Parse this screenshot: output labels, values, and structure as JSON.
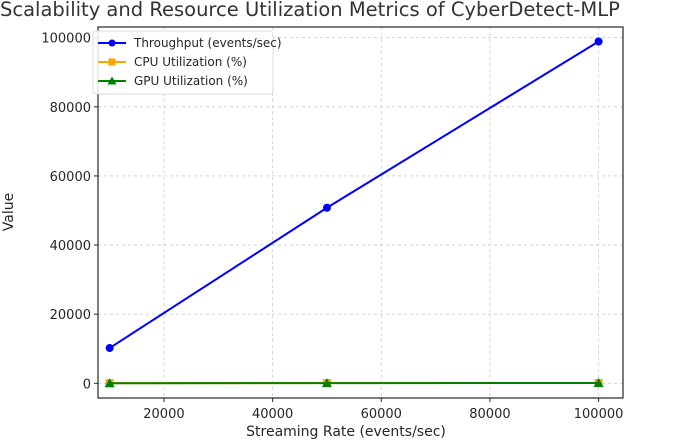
{
  "chart_data": {
    "type": "line",
    "title": "Scalability and Resource Utilization Metrics of CyberDetect-MLP",
    "xlabel": "Streaming Rate (events/sec)",
    "ylabel": "Value",
    "x": [
      10000,
      50000,
      100000
    ],
    "xticks": [
      20000,
      40000,
      60000,
      80000,
      100000
    ],
    "yticks": [
      0,
      20000,
      40000,
      60000,
      80000,
      100000
    ],
    "xlim": [
      6000,
      104000
    ],
    "ylim": [
      -5000,
      105000
    ],
    "grid": true,
    "legend_position": "upper left",
    "series": [
      {
        "name": "Throughput (events/sec)",
        "color": "#0000ff",
        "marker": "circle",
        "values": [
          10200,
          50800,
          98900
        ]
      },
      {
        "name": "CPU Utilization (%)",
        "color": "#ffa500",
        "marker": "square",
        "values": [
          45,
          70,
          90
        ]
      },
      {
        "name": "GPU Utilization (%)",
        "color": "#008000",
        "marker": "triangle",
        "values": [
          30,
          55,
          80
        ]
      }
    ]
  }
}
